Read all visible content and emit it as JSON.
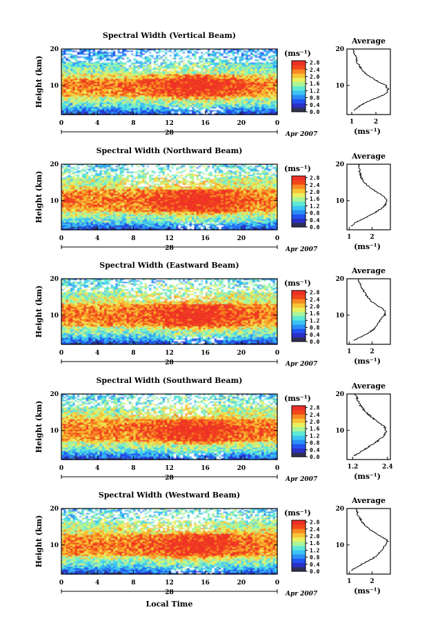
{
  "chart_data": {
    "type": "heatmap",
    "colorbar": {
      "unit": "(ms⁻¹)",
      "tick_labels": [
        "2.8",
        "2.4",
        "2.0",
        "1.6",
        "1.2",
        "0.8",
        "0.4",
        "0.0"
      ],
      "range": [
        0.0,
        2.9
      ],
      "colors": [
        "#303056",
        "#2b2fc5",
        "#2152ef",
        "#2a8ef5",
        "#3bc3f3",
        "#5ee8d6",
        "#a8f59a",
        "#e8f060",
        "#f7c436",
        "#f88a22",
        "#f2461b",
        "#ee3027"
      ]
    },
    "x_axis": {
      "label": "Local Time",
      "ticks": [
        "0",
        "4",
        "8",
        "12",
        "16",
        "20",
        "0"
      ],
      "range": [
        0,
        24
      ],
      "date_day": "28",
      "date_month": "Apr 2007"
    },
    "y_axis": {
      "label": "Height (km)",
      "ticks": [
        "10",
        "20"
      ],
      "range": [
        2,
        20
      ]
    },
    "average_title": "Average",
    "average_xlabel": "(ms⁻¹)",
    "panels": [
      {
        "title": "Spectral Width (Vertical Beam)",
        "avg_xticks": [
          "1",
          "2"
        ],
        "avg_xrange": [
          0.8,
          2.6
        ],
        "avg_profile_height_km": [
          3,
          4,
          5,
          6,
          7,
          8,
          9,
          10,
          11,
          12,
          13,
          14,
          15,
          16,
          17,
          18,
          19,
          20
        ],
        "avg_profile_value": [
          1.1,
          1.25,
          1.5,
          1.8,
          2.2,
          2.45,
          2.5,
          2.4,
          2.1,
          1.85,
          1.6,
          1.45,
          1.35,
          1.25,
          1.2,
          1.15,
          1.1,
          1.05
        ]
      },
      {
        "title": "Spectral Width (Northward Beam)",
        "avg_xticks": [
          "1",
          "2"
        ],
        "avg_xrange": [
          0.9,
          2.8
        ],
        "avg_profile_height_km": [
          3,
          4,
          5,
          6,
          7,
          8,
          9,
          10,
          11,
          12,
          13,
          14,
          15,
          16,
          17,
          18,
          19,
          20
        ],
        "avg_profile_value": [
          1.1,
          1.3,
          1.6,
          1.9,
          2.2,
          2.45,
          2.6,
          2.65,
          2.55,
          2.3,
          2.05,
          1.85,
          1.65,
          1.55,
          1.5,
          1.45,
          1.45,
          1.4
        ]
      },
      {
        "title": "Spectral Width (Eastward Beam)",
        "avg_xticks": [
          "1",
          "2"
        ],
        "avg_xrange": [
          0.9,
          2.8
        ],
        "avg_profile_height_km": [
          3,
          4,
          5,
          6,
          7,
          8,
          9,
          10,
          11,
          12,
          13,
          14,
          15,
          16,
          17,
          18,
          19,
          20
        ],
        "avg_profile_value": [
          1.2,
          1.5,
          1.8,
          2.05,
          2.2,
          2.3,
          2.4,
          2.55,
          2.6,
          2.4,
          2.15,
          1.95,
          1.8,
          1.7,
          1.6,
          1.5,
          1.45,
          1.4
        ]
      },
      {
        "title": "Spectral Width (Southward Beam)",
        "avg_xticks": [
          "1.2",
          "2.4"
        ],
        "avg_xrange": [
          1.0,
          2.5
        ],
        "avg_profile_height_km": [
          3,
          4,
          5,
          6,
          7,
          8,
          9,
          10,
          11,
          12,
          13,
          14,
          15,
          16,
          17,
          18,
          19,
          20
        ],
        "avg_profile_value": [
          1.25,
          1.45,
          1.65,
          1.85,
          2.05,
          2.2,
          2.3,
          2.35,
          2.3,
          2.15,
          1.95,
          1.8,
          1.65,
          1.55,
          1.45,
          1.4,
          1.35,
          1.3
        ]
      },
      {
        "title": "Spectral Width (Westward Beam)",
        "avg_xticks": [
          "1",
          "2"
        ],
        "avg_xrange": [
          0.9,
          2.8
        ],
        "avg_profile_height_km": [
          3,
          4,
          5,
          6,
          7,
          8,
          9,
          10,
          11,
          12,
          13,
          14,
          15,
          16,
          17,
          18,
          19,
          20
        ],
        "avg_profile_value": [
          1.1,
          1.35,
          1.65,
          1.95,
          2.2,
          2.35,
          2.45,
          2.6,
          2.7,
          2.5,
          2.2,
          1.95,
          1.75,
          1.6,
          1.5,
          1.4,
          1.35,
          1.3
        ]
      }
    ]
  }
}
